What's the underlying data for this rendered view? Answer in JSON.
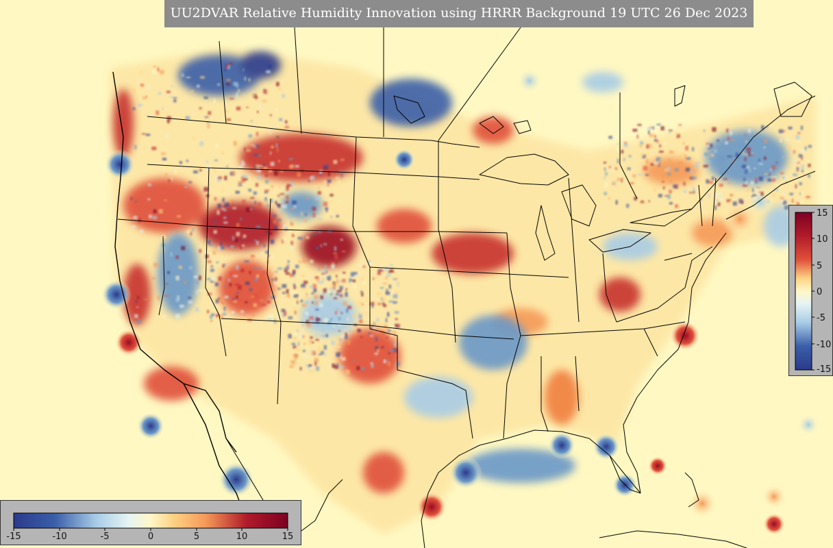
{
  "title": "UU2DVAR Relative Humidity Innovation using HRRR Background 19 UTC 26 Dec 2023",
  "colorbar": {
    "min": -15,
    "max": 15,
    "right_ticks": [
      "15",
      "10",
      "5",
      "0",
      "-5",
      "-10",
      "-15"
    ],
    "bottom_ticks": [
      "-15",
      "-10",
      "-5",
      "0",
      "5",
      "10",
      "15"
    ],
    "colors": [
      "#2b3a8c",
      "#3a5ea8",
      "#6a98c8",
      "#a8cce6",
      "#e6f4f2",
      "#fff7c8",
      "#fdd385",
      "#f59a58",
      "#e0503a",
      "#b01b2a",
      "#7d0022"
    ]
  },
  "map": {
    "background": "#fff8c2",
    "coast_color": "#000000"
  }
}
